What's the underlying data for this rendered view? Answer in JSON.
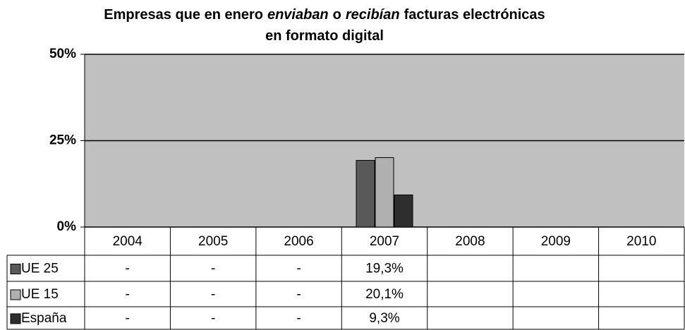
{
  "chart_data": {
    "type": "bar",
    "title": [
      [
        "Empresas que en enero",
        "enviaban",
        "o",
        "recibían",
        "facturas electrónicas"
      ],
      [
        "en formato digital"
      ]
    ],
    "categories": [
      "2004",
      "2005",
      "2006",
      "2007",
      "2008",
      "2009",
      "2010"
    ],
    "series": [
      {
        "name": "UE 25",
        "color": "#595959",
        "values": [
          null,
          null,
          null,
          19.3,
          null,
          null,
          null
        ],
        "value_labels": [
          "-",
          "-",
          "-",
          "19,3%",
          null,
          null,
          null
        ]
      },
      {
        "name": "UE 15",
        "color": "#b0b0b0",
        "values": [
          null,
          null,
          null,
          20.1,
          null,
          null,
          null
        ],
        "value_labels": [
          "-",
          "-",
          "-",
          "20,1%",
          null,
          null,
          null
        ]
      },
      {
        "name": "España",
        "color": "#2e2e2e",
        "values": [
          null,
          null,
          null,
          9.3,
          null,
          null,
          null
        ],
        "value_labels": [
          "-",
          "-",
          "-",
          "9,3%",
          null,
          null,
          null
        ]
      }
    ],
    "ylim": [
      0,
      50
    ],
    "yticks": [
      {
        "value": 0,
        "label": "0%"
      },
      {
        "value": 25,
        "label": "25%"
      },
      {
        "value": 50,
        "label": "50%"
      }
    ],
    "grid": true,
    "plot_background": "#c0c0c0"
  }
}
